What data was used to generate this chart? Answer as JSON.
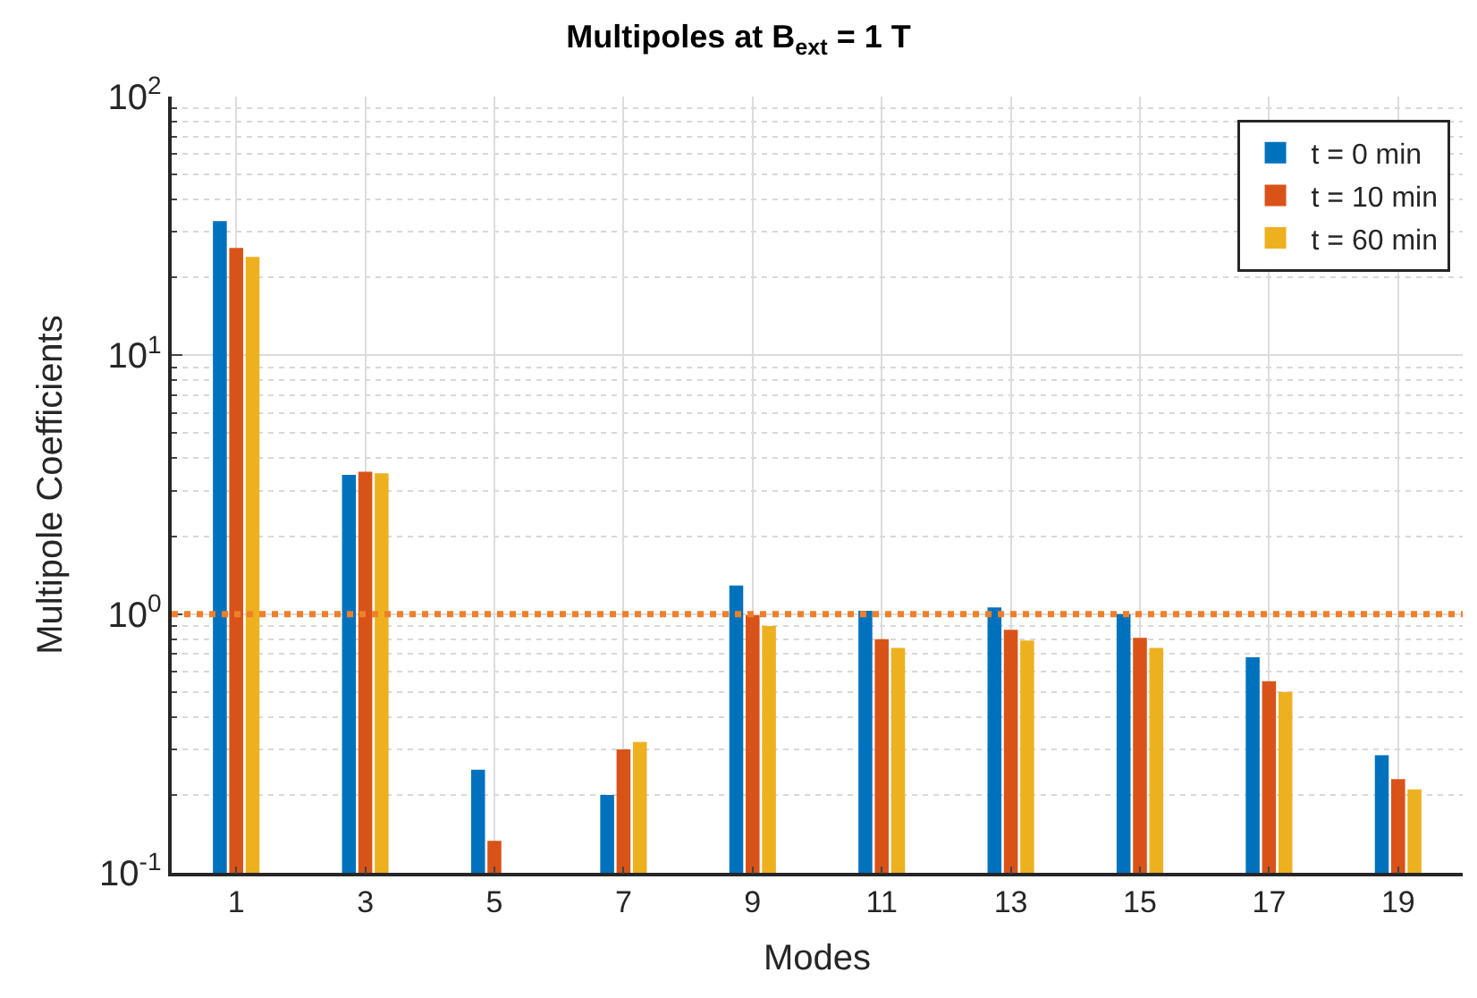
{
  "chart_data": {
    "type": "bar",
    "title": "Multipoles at B$_{ext}$ = 1 T",
    "xlabel": "Modes",
    "ylabel": "Multipole Coefficients",
    "x": [
      1,
      3,
      5,
      7,
      9,
      11,
      13,
      15,
      17,
      19
    ],
    "series": [
      {
        "name": "t = 0 min",
        "color": "#0072bd",
        "values": [
          33,
          3.45,
          0.25,
          0.2,
          1.29,
          1.03,
          1.06,
          1.0,
          0.68,
          0.285
        ]
      },
      {
        "name": "t = 10 min",
        "color": "#d95319",
        "values": [
          26,
          3.55,
          0.133,
          0.3,
          0.99,
          0.8,
          0.87,
          0.81,
          0.55,
          0.23
        ]
      },
      {
        "name": "t = 60 min",
        "color": "#edb120",
        "values": [
          24,
          3.5,
          null,
          0.32,
          0.9,
          0.74,
          0.79,
          0.74,
          0.5,
          0.21
        ]
      }
    ],
    "xlim": [
      0,
      20
    ],
    "xticks": [
      1,
      3,
      5,
      7,
      9,
      11,
      13,
      15,
      17,
      19
    ],
    "ylim": [
      0.1,
      100
    ],
    "yticks": [
      {
        "value": 0.1,
        "label": "10$^{-1}$"
      },
      {
        "value": 1,
        "label": "10$^{0}$"
      },
      {
        "value": 10,
        "label": "10$^{1}$"
      },
      {
        "value": 100,
        "label": "10$^{2}$"
      }
    ],
    "log": "y",
    "grid": true,
    "legend": "top right",
    "ref_lines": [
      {
        "axis": "y",
        "value": 1,
        "color": "#f07f2a",
        "line_style": "dotted"
      }
    ]
  }
}
